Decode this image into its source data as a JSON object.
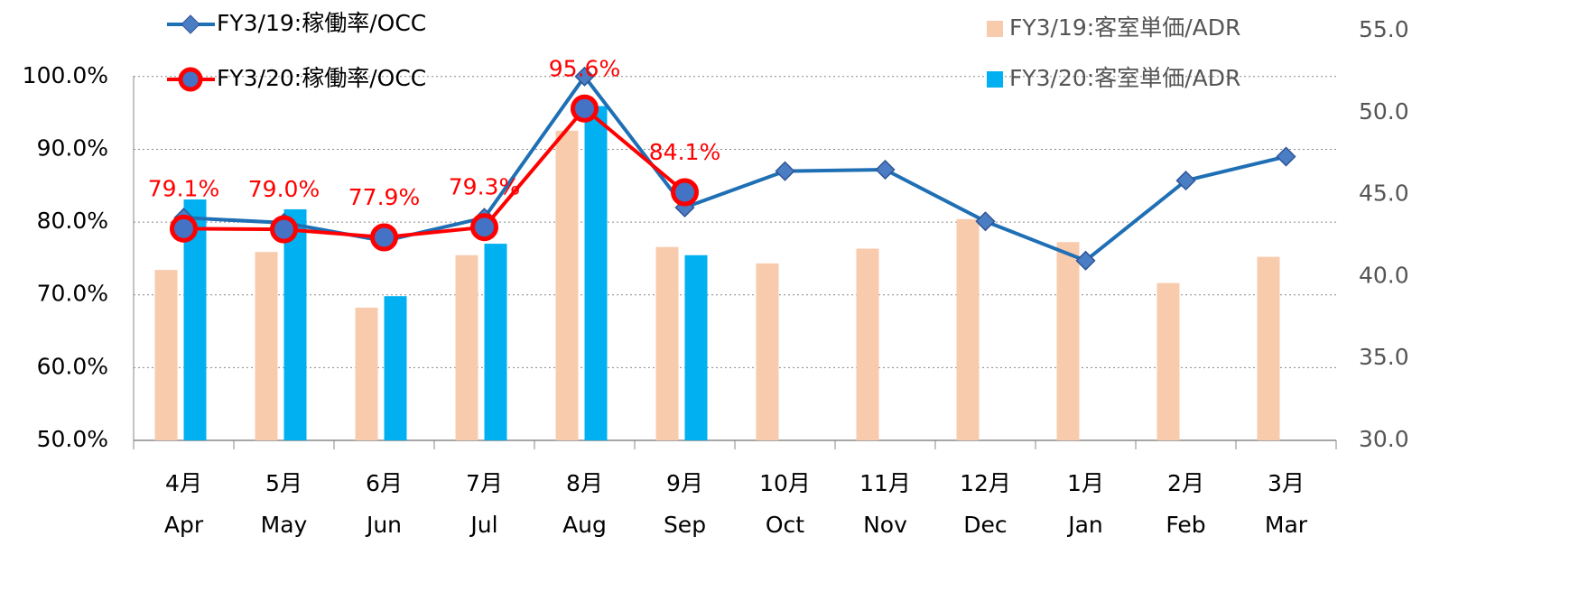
{
  "chart_data": {
    "type": "combo",
    "categories": [
      [
        "4月",
        "Apr"
      ],
      [
        "5月",
        "May"
      ],
      [
        "6月",
        "Jun"
      ],
      [
        "7月",
        "Jul"
      ],
      [
        "8月",
        "Aug"
      ],
      [
        "9月",
        "Sep"
      ],
      [
        "10月",
        "Oct"
      ],
      [
        "11月",
        "Nov"
      ],
      [
        "12月",
        "Dec"
      ],
      [
        "1月",
        "Jan"
      ],
      [
        "2月",
        "Feb"
      ],
      [
        "3月",
        "Mar"
      ]
    ],
    "series": [
      {
        "name": "FY3/19:客室単価/ADR",
        "type": "bar",
        "axis": "y2",
        "color": "#f8cbad",
        "values": [
          40.4,
          41.5,
          38.1,
          41.3,
          48.9,
          41.8,
          40.8,
          41.7,
          43.5,
          42.1,
          39.6,
          41.2
        ]
      },
      {
        "name": "FY3/20:客室単価/ADR",
        "type": "bar",
        "axis": "y2",
        "color": "#00b0f0",
        "values": [
          44.7,
          44.1,
          38.8,
          42.0,
          50.4,
          41.3,
          null,
          null,
          null,
          null,
          null,
          null
        ]
      },
      {
        "name": "FY3/19:稼働率/OCC",
        "type": "line",
        "axis": "y",
        "color": "#1f6fb5",
        "marker_color": "#4a7dc4",
        "values": [
          80.6,
          79.9,
          77.4,
          80.6,
          100.0,
          82.0,
          87.0,
          87.2,
          80.1,
          74.7,
          85.7,
          89.0
        ]
      },
      {
        "name": "FY3/20:稼働率/OCC",
        "type": "line",
        "axis": "y",
        "color": "#ff0000",
        "marker_color": "#4472c4",
        "values": [
          79.1,
          79.0,
          77.9,
          79.3,
          95.6,
          84.1,
          null,
          null,
          null,
          null,
          null,
          null
        ],
        "value_labels": [
          "79.1%",
          "79.0%",
          "77.9%",
          "79.3%",
          "95.6%",
          "84.1%",
          null,
          null,
          null,
          null,
          null,
          null
        ]
      }
    ],
    "ylim": [
      50,
      106.3
    ],
    "yticks": [
      {
        "value": 50,
        "label": "50.0%"
      },
      {
        "value": 60,
        "label": "60.0%"
      },
      {
        "value": 70,
        "label": "70.0%"
      },
      {
        "value": 80,
        "label": "80.0%"
      },
      {
        "value": 90,
        "label": "90.0%"
      },
      {
        "value": 100,
        "label": "100.0%"
      }
    ],
    "y2lim": [
      30,
      55
    ],
    "y2ticks": [
      {
        "value": 30,
        "label": "30.0"
      },
      {
        "value": 35,
        "label": "35.0"
      },
      {
        "value": 40,
        "label": "40.0"
      },
      {
        "value": 45,
        "label": "45.0"
      },
      {
        "value": 50,
        "label": "50.0"
      },
      {
        "value": 55,
        "label": "55.0"
      }
    ],
    "grid": true
  }
}
